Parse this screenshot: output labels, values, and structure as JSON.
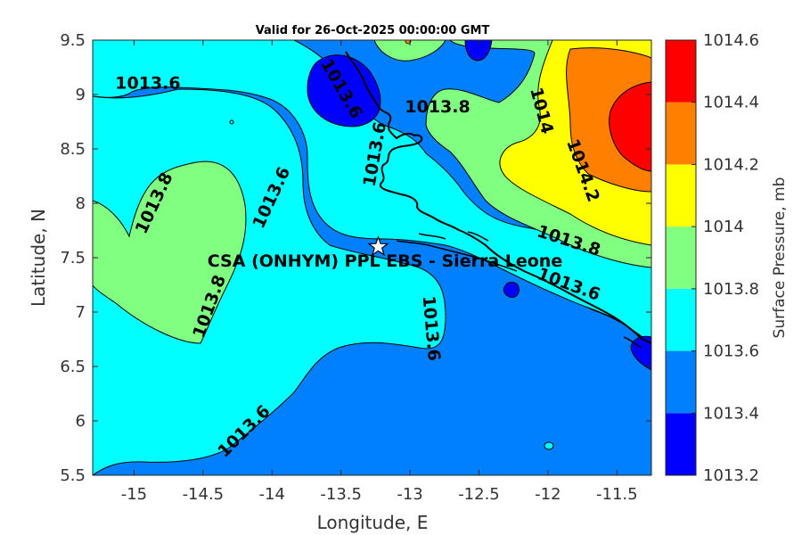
{
  "title": "Valid for 26-Oct-2025 00:00:00 GMT",
  "site_label": "CSA (ONHYM) PPL EBS  - Sierra Leone",
  "colors": {
    "level_1013_2": "#0000ff",
    "level_1013_4": "#0080ff",
    "level_1013_6": "#00ffff",
    "level_1013_8": "#80ff80",
    "level_1014_0": "#ffff00",
    "level_1014_2": "#ff8000",
    "level_1014_4": "#ff0000",
    "level_1014_6": "#800000"
  },
  "chart_data": {
    "type": "contour-map",
    "x_axis": {
      "label": "Longitude, E",
      "range": [
        -15.3,
        -11.25
      ],
      "ticks": [
        -15,
        -14.5,
        -14,
        -13.5,
        -13,
        -12.5,
        -12,
        -11.5
      ],
      "tick_labels": [
        "-15",
        "-14.5",
        "-14",
        "-13.5",
        "-13",
        "-12.5",
        "-12",
        "-11.5"
      ]
    },
    "y_axis": {
      "label": "Latitude, N",
      "range": [
        5.5,
        9.5
      ],
      "ticks": [
        5.5,
        6,
        6.5,
        7,
        7.5,
        8,
        8.5,
        9,
        9.5
      ],
      "tick_labels": [
        "5.5",
        "6",
        "6.5",
        "7",
        "7.5",
        "8",
        "8.5",
        "9",
        "9.5"
      ]
    },
    "colorbar": {
      "label": "Surface Pressure, mb",
      "levels": [
        1013.2,
        1013.4,
        1013.6,
        1013.8,
        1014,
        1014.2,
        1014.4,
        1014.6
      ],
      "level_labels": [
        "1013.2",
        "1013.4",
        "1013.6",
        "1013.8",
        "1014",
        "1014.2",
        "1014.4",
        "1014.6"
      ],
      "colors": [
        "#0000ff",
        "#0080ff",
        "#00ffff",
        "#80ff80",
        "#ffff00",
        "#ff8000",
        "#ff0000",
        "#800000"
      ]
    },
    "site": {
      "lon": -13.23,
      "lat": 7.6,
      "marker": "star"
    },
    "contour_labels": [
      {
        "text": "1013.6",
        "lon": -14.9,
        "lat": 9.1,
        "angle": 0
      },
      {
        "text": "1013.8",
        "lon": -14.85,
        "lat": 8.0,
        "angle": -65
      },
      {
        "text": "1013.6",
        "lon": -14.0,
        "lat": 8.05,
        "angle": -65
      },
      {
        "text": "1013.8",
        "lon": -14.45,
        "lat": 7.05,
        "angle": -70
      },
      {
        "text": "1013.6",
        "lon": -14.2,
        "lat": 5.9,
        "angle": -45
      },
      {
        "text": "1013.6",
        "lon": -13.5,
        "lat": 9.05,
        "angle": 60
      },
      {
        "text": "1013.6",
        "lon": -13.25,
        "lat": 8.45,
        "angle": -80
      },
      {
        "text": "1013.8",
        "lon": -12.8,
        "lat": 8.88,
        "angle": 0
      },
      {
        "text": "1014",
        "lon": -12.05,
        "lat": 8.85,
        "angle": 75
      },
      {
        "text": "1014.2",
        "lon": -11.75,
        "lat": 8.3,
        "angle": 70
      },
      {
        "text": "1013.8",
        "lon": -11.85,
        "lat": 7.65,
        "angle": 18
      },
      {
        "text": "1013.6",
        "lon": -11.85,
        "lat": 7.25,
        "angle": 20
      },
      {
        "text": "1013.6",
        "lon": -12.85,
        "lat": 6.85,
        "angle": 85
      }
    ]
  }
}
